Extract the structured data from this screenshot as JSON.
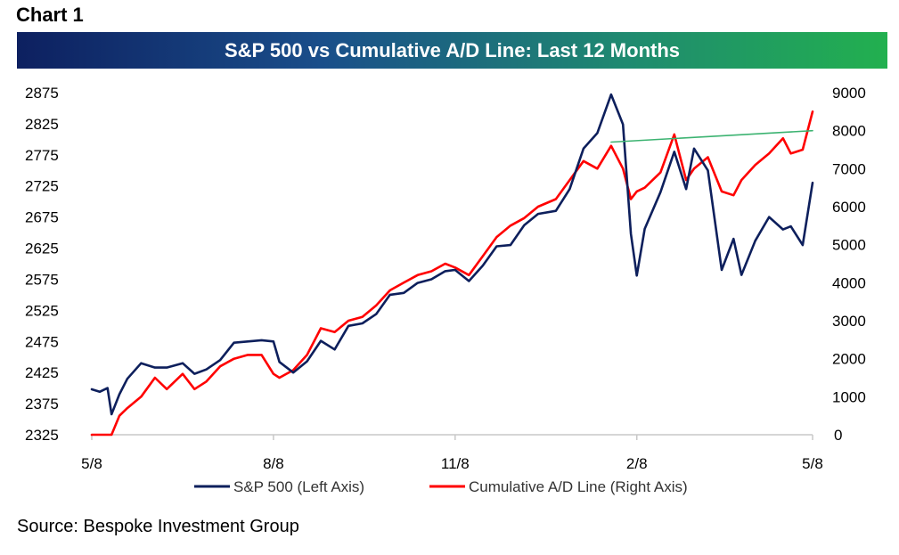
{
  "chart_label": "Chart 1",
  "banner": {
    "title": "S&P 500 vs Cumulative A/D Line: Last 12 Months"
  },
  "source": "Source: Bespoke Investment Group",
  "colors": {
    "spx": "#0d1f5c",
    "ad": "#ff0000",
    "trend": "#3cb371",
    "axis": "#c8c8c8"
  },
  "chart_data": {
    "type": "line",
    "title": "S&P 500 vs Cumulative A/D Line: Last 12 Months",
    "x_ticks": [
      "5/8",
      "8/8",
      "11/8",
      "2/8",
      "5/8"
    ],
    "y_left": {
      "label": "S&P 500 (Left Axis)",
      "ylim": [
        2325,
        2875
      ],
      "ticks": [
        "2875",
        "2825",
        "2775",
        "2725",
        "2675",
        "2625",
        "2575",
        "2525",
        "2475",
        "2425",
        "2375",
        "2325"
      ]
    },
    "y_right": {
      "label": "Cumulative A/D Line (Right Axis)",
      "ylim": [
        0,
        9000
      ],
      "ticks": [
        "9000",
        "8000",
        "7000",
        "6000",
        "5000",
        "4000",
        "3000",
        "2000",
        "1000",
        "0"
      ]
    },
    "series": [
      {
        "name": "S&P 500 (Left Axis)",
        "axis": "left",
        "x": [
          "2017-05-08",
          "2017-05-12",
          "2017-05-16",
          "2017-05-18",
          "2017-05-22",
          "2017-05-26",
          "2017-06-02",
          "2017-06-09",
          "2017-06-15",
          "2017-06-23",
          "2017-06-29",
          "2017-07-05",
          "2017-07-12",
          "2017-07-19",
          "2017-07-26",
          "2017-08-02",
          "2017-08-08",
          "2017-08-11",
          "2017-08-18",
          "2017-08-25",
          "2017-09-01",
          "2017-09-08",
          "2017-09-15",
          "2017-09-22",
          "2017-09-29",
          "2017-10-06",
          "2017-10-13",
          "2017-10-20",
          "2017-10-27",
          "2017-11-03",
          "2017-11-08",
          "2017-11-15",
          "2017-11-22",
          "2017-11-29",
          "2017-12-06",
          "2017-12-13",
          "2017-12-20",
          "2017-12-29",
          "2018-01-05",
          "2018-01-12",
          "2018-01-19",
          "2018-01-26",
          "2018-02-01",
          "2018-02-05",
          "2018-02-08",
          "2018-02-12",
          "2018-02-20",
          "2018-02-27",
          "2018-03-05",
          "2018-03-09",
          "2018-03-16",
          "2018-03-23",
          "2018-03-29",
          "2018-04-02",
          "2018-04-09",
          "2018-04-16",
          "2018-04-23",
          "2018-04-27",
          "2018-05-03",
          "2018-05-08"
        ],
        "values": [
          2398,
          2394,
          2400,
          2358,
          2390,
          2415,
          2440,
          2433,
          2433,
          2440,
          2423,
          2430,
          2445,
          2473,
          2475,
          2477,
          2475,
          2442,
          2425,
          2443,
          2476,
          2462,
          2500,
          2504,
          2519,
          2550,
          2553,
          2569,
          2575,
          2588,
          2590,
          2572,
          2597,
          2628,
          2630,
          2662,
          2680,
          2685,
          2720,
          2785,
          2810,
          2872,
          2824,
          2648,
          2581,
          2656,
          2715,
          2780,
          2720,
          2785,
          2750,
          2590,
          2640,
          2582,
          2637,
          2675,
          2655,
          2660,
          2630,
          2730
        ]
      },
      {
        "name": "Cumulative A/D Line (Right Axis)",
        "axis": "right",
        "x": [
          "2017-05-08",
          "2017-05-12",
          "2017-05-16",
          "2017-05-18",
          "2017-05-22",
          "2017-05-26",
          "2017-06-02",
          "2017-06-09",
          "2017-06-15",
          "2017-06-23",
          "2017-06-29",
          "2017-07-05",
          "2017-07-12",
          "2017-07-19",
          "2017-07-26",
          "2017-08-02",
          "2017-08-08",
          "2017-08-11",
          "2017-08-18",
          "2017-08-25",
          "2017-09-01",
          "2017-09-08",
          "2017-09-15",
          "2017-09-22",
          "2017-09-29",
          "2017-10-06",
          "2017-10-13",
          "2017-10-20",
          "2017-10-27",
          "2017-11-03",
          "2017-11-08",
          "2017-11-15",
          "2017-11-22",
          "2017-11-29",
          "2017-12-06",
          "2017-12-13",
          "2017-12-20",
          "2017-12-29",
          "2018-01-05",
          "2018-01-12",
          "2018-01-19",
          "2018-01-26",
          "2018-02-01",
          "2018-02-05",
          "2018-02-08",
          "2018-02-12",
          "2018-02-20",
          "2018-02-27",
          "2018-03-05",
          "2018-03-09",
          "2018-03-16",
          "2018-03-23",
          "2018-03-29",
          "2018-04-02",
          "2018-04-09",
          "2018-04-16",
          "2018-04-23",
          "2018-04-27",
          "2018-05-03",
          "2018-05-08"
        ],
        "values": [
          0,
          -50,
          -30,
          0,
          500,
          700,
          1000,
          1500,
          1200,
          1600,
          1200,
          1400,
          1800,
          2000,
          2100,
          2100,
          1600,
          1500,
          1700,
          2100,
          2800,
          2700,
          3000,
          3100,
          3400,
          3800,
          4000,
          4200,
          4300,
          4500,
          4400,
          4200,
          4700,
          5200,
          5500,
          5700,
          6000,
          6200,
          6700,
          7200,
          7000,
          7600,
          7000,
          6200,
          6400,
          6500,
          6900,
          7900,
          6700,
          7000,
          7300,
          6400,
          6300,
          6700,
          7100,
          7400,
          7800,
          7400,
          7500,
          8500
        ]
      },
      {
        "name": "",
        "axis": "right",
        "x": [
          "2018-01-26",
          "2018-05-08"
        ],
        "values": [
          7700,
          8000
        ]
      }
    ],
    "legend_position": "bottom",
    "grid": false
  }
}
